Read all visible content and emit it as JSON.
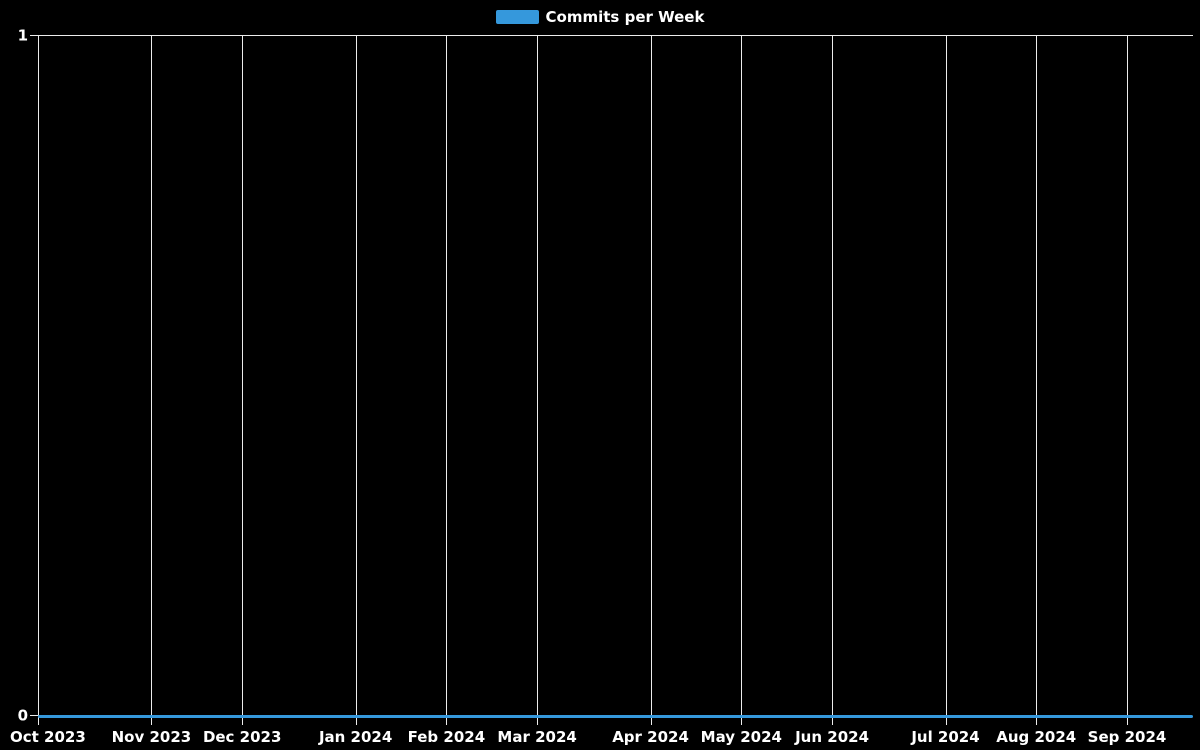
{
  "legend": {
    "label": "Commits per Week",
    "swatch_color": "#3598dc"
  },
  "colors": {
    "background": "#000000",
    "grid": "#ececec",
    "text": "#ffffff",
    "accent": "#3598dc"
  },
  "chart_data": {
    "type": "line",
    "title": "Commits per Week",
    "xlabel": "",
    "ylabel": "",
    "ylim": [
      0,
      1
    ],
    "y_ticks": [
      {
        "label": "1",
        "value": 1
      },
      {
        "label": "0",
        "value": 0
      }
    ],
    "grid": "vertical-only",
    "legend_position": "top-center",
    "x_ticks": [
      {
        "label": "Oct 2023",
        "week": 0
      },
      {
        "label": "Nov 2023",
        "week": 5
      },
      {
        "label": "Dec 2023",
        "week": 9
      },
      {
        "label": "Jan 2024",
        "week": 14
      },
      {
        "label": "Feb 2024",
        "week": 18
      },
      {
        "label": "Mar 2024",
        "week": 22
      },
      {
        "label": "Apr 2024",
        "week": 27
      },
      {
        "label": "May 2024",
        "week": 31
      },
      {
        "label": "Jun 2024",
        "week": 35
      },
      {
        "label": "Jul 2024",
        "week": 40
      },
      {
        "label": "Aug 2024",
        "week": 44
      },
      {
        "label": "Sep 2024",
        "week": 48
      }
    ],
    "series": [
      {
        "name": "Commits per Week",
        "color": "#3598dc",
        "unit": "commits",
        "values": [
          0,
          0,
          0,
          0,
          0,
          0,
          0,
          0,
          0,
          0,
          0,
          0,
          0,
          0,
          0,
          0,
          0,
          0,
          0,
          0,
          0,
          0,
          0,
          0,
          0,
          0,
          0,
          0,
          0,
          0,
          0,
          0,
          0,
          0,
          0,
          0,
          0,
          0,
          0,
          0,
          0,
          0,
          0,
          0,
          0,
          0,
          0,
          0,
          0,
          0,
          0,
          0
        ]
      }
    ]
  }
}
